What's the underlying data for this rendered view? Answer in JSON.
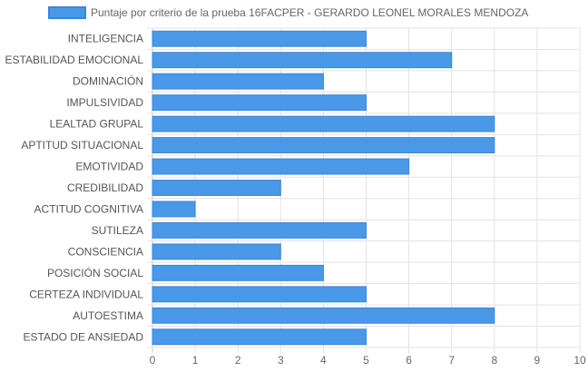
{
  "chart_data": {
    "type": "bar",
    "orientation": "horizontal",
    "categories": [
      "INTELIGENCIA",
      "ESTABILIDAD EMOCIONAL",
      "DOMINACIÓN",
      "IMPULSIVIDAD",
      "LEALTAD GRUPAL",
      "APTITUD SITUACIONAL",
      "EMOTIVIDAD",
      "CREDIBILIDAD",
      "ACTITUD COGNITIVA",
      "SUTILEZA",
      "CONSCIENCIA",
      "POSICIÓN SOCIAL",
      "CERTEZA INDIVIDUAL",
      "AUTOESTIMA",
      "ESTADO DE ANSIEDAD"
    ],
    "series": [
      {
        "name": "Puntaje por criterio de la prueba 16FACPER - GERARDO LEONEL MORALES MENDOZA",
        "values": [
          5,
          7,
          4,
          5,
          8,
          8,
          6,
          3,
          1,
          5,
          3,
          4,
          5,
          8,
          5
        ]
      }
    ],
    "xlim": [
      0,
      10
    ],
    "x_ticks": [
      "0",
      "1",
      "2",
      "3",
      "4",
      "5",
      "6",
      "7",
      "8",
      "9",
      "10"
    ],
    "grid": true,
    "legend_position": "top",
    "colors": {
      "bar_fill": "#4a98e8",
      "bar_border": "#3a86d8",
      "grid": "#e3e3e3",
      "axis": "#c8c8c8"
    }
  }
}
